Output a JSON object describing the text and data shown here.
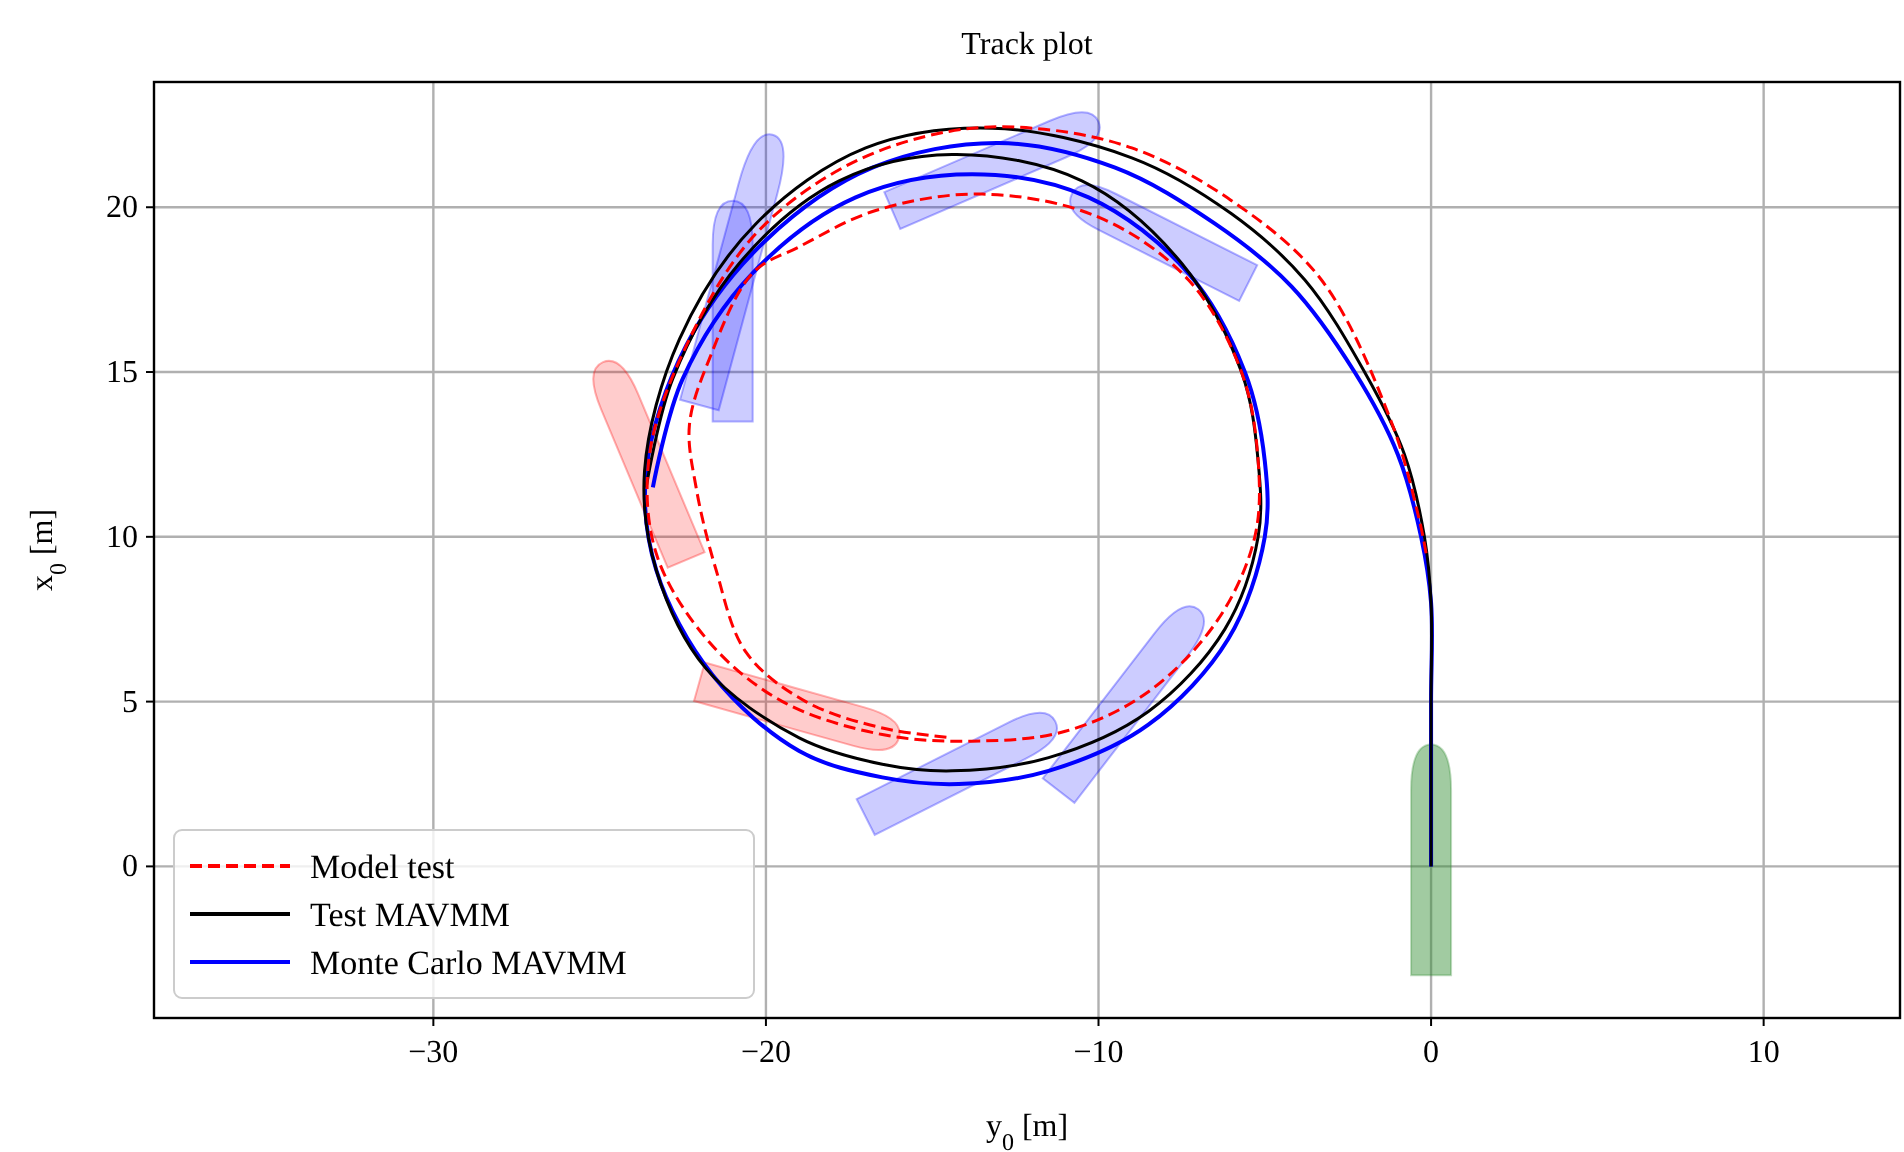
{
  "chart_data": {
    "type": "line",
    "title": "Track plot",
    "xlabel": "y$_{0}$ [m]",
    "ylabel": "x$_{0}$ [m]",
    "xlim": [
      -38.4,
      14.1
    ],
    "ylim": [
      -4.6,
      23.8
    ],
    "xticks": [
      {
        "value": -30,
        "label": "−30"
      },
      {
        "value": -20,
        "label": "−20"
      },
      {
        "value": -10,
        "label": "−10"
      },
      0,
      10
    ],
    "yticks": [
      0,
      5,
      10,
      15,
      20
    ],
    "grid": true,
    "legend": "bottom left",
    "series": [
      {
        "name": "Model test",
        "color": "#ff0000",
        "line_style": "dashed",
        "x": [
          -0.15,
          -0.35,
          -1.2,
          -3.3,
          -6,
          -9,
          -12,
          -14.5,
          -17.5,
          -20.3,
          -22.3,
          -23.5,
          -23.3,
          -21.7,
          -19.5,
          -16.5,
          -13.8,
          -11,
          -8.5,
          -6.4,
          -5.3,
          -5.2,
          -5.7,
          -7.3,
          -10,
          -13.5,
          -16.7,
          -19,
          -20.4,
          -21.7,
          -22.3,
          -22.1,
          -21.5,
          -20.6,
          -18.8,
          -16.5,
          -14.4
        ],
        "values": [
          9.5,
          10.5,
          13.5,
          17.8,
          20.2,
          21.8,
          22.4,
          22.3,
          21.3,
          19.2,
          16,
          12.5,
          9.5,
          6.8,
          5,
          4,
          3.8,
          4.1,
          5.3,
          7.5,
          10,
          12.3,
          15,
          17.8,
          19.7,
          20.4,
          19.9,
          18.8,
          18,
          15.4,
          13.4,
          11.5,
          9,
          6.5,
          5,
          4.2,
          3.9
        ]
      },
      {
        "name": "Test MAVMM",
        "color": "#000000",
        "line_style": "solid",
        "x": [
          0,
          0,
          0,
          -0.2,
          -0.8,
          -2,
          -3.8,
          -6,
          -9,
          -13.2,
          -17,
          -20.3,
          -22.6,
          -23.65,
          -23.3,
          -21.8,
          -19,
          -16.5,
          -14.4,
          -11.5,
          -8.5,
          -6.2,
          -5.2,
          -5.2,
          -5.7,
          -7.5,
          -10.5,
          -14.4,
          -17.8,
          -20.8,
          -22.8,
          -23.6
        ],
        "values": [
          0,
          5,
          8,
          10,
          12.5,
          15,
          17.8,
          19.8,
          21.5,
          22.4,
          21.8,
          19.5,
          16,
          12,
          9,
          6,
          3.9,
          3.1,
          2.9,
          3.3,
          4.7,
          7.2,
          10,
          12.3,
          15,
          18.3,
          20.8,
          21.6,
          20.8,
          18.3,
          14.8,
          11.5
        ]
      },
      {
        "name": "Monte Carlo MAVMM",
        "color": "#0000ff",
        "line_style": "solid",
        "x": [
          0,
          0,
          0,
          -0.3,
          -1,
          -2.3,
          -4.2,
          -6.5,
          -9.5,
          -13,
          -16.8,
          -20,
          -22.4,
          -23.6,
          -23.3,
          -21.6,
          -19,
          -16.5,
          -14.2,
          -11.5,
          -8.5,
          -6.1,
          -5,
          -5,
          -5.6,
          -7.3,
          -10.3,
          -13.8,
          -17.3,
          -20.4,
          -22.5,
          -23.4
        ],
        "values": [
          0,
          5,
          8,
          10,
          12.5,
          15,
          17.6,
          19.5,
          21.2,
          21.95,
          21.2,
          19,
          15.8,
          12,
          9,
          5.8,
          3.5,
          2.7,
          2.5,
          2.9,
          4.3,
          6.9,
          10,
          12.3,
          15,
          18,
          20.3,
          21,
          20.3,
          18,
          14.8,
          11.5
        ]
      }
    ]
  }
}
